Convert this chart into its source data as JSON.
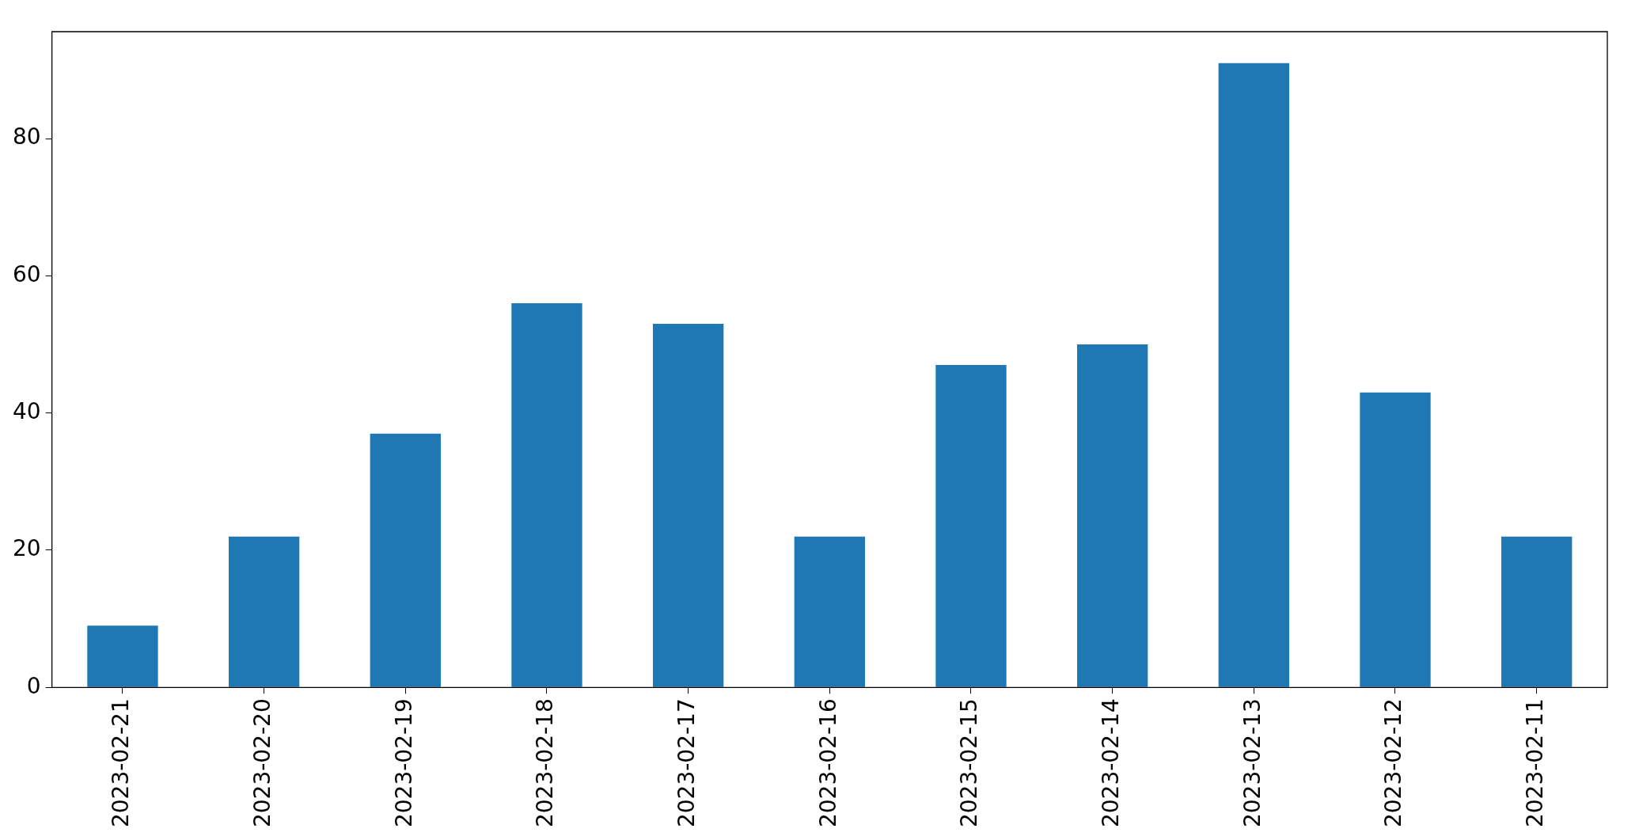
{
  "chart_data": {
    "type": "bar",
    "categories": [
      "2023-02-21",
      "2023-02-20",
      "2023-02-19",
      "2023-02-18",
      "2023-02-17",
      "2023-02-16",
      "2023-02-15",
      "2023-02-14",
      "2023-02-13",
      "2023-02-12",
      "2023-02-11"
    ],
    "values": [
      9,
      22,
      37,
      56,
      53,
      22,
      47,
      50,
      91,
      43,
      22
    ],
    "color": "#1f77b4",
    "ylim": [
      0,
      95.6
    ],
    "yticks": [
      0,
      20,
      40,
      60,
      80
    ],
    "grid": false,
    "legend": false
  }
}
